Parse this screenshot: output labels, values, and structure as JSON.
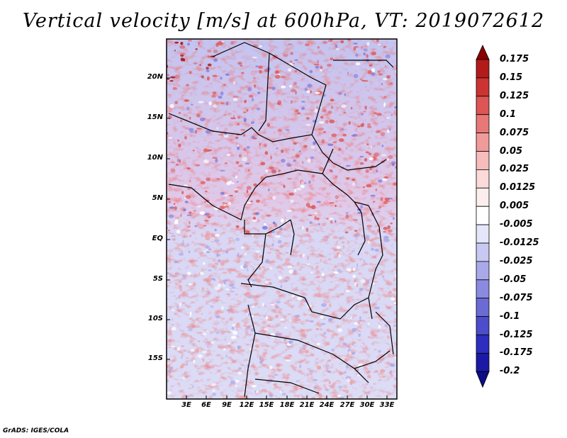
{
  "title": "Vertical velocity [m/s] at 600hPa, VT: 2019072612",
  "map": {
    "variable": "Vertical velocity",
    "units": "m/s",
    "level": "600hPa",
    "valid_time": "2019072612",
    "lat_labels": [
      "20N",
      "15N",
      "10N",
      "5N",
      "EQ",
      "5S",
      "10S",
      "15S"
    ],
    "lon_labels": [
      "3E",
      "6E",
      "9E",
      "12E",
      "15E",
      "18E",
      "21E",
      "24E",
      "27E",
      "30E",
      "33E"
    ]
  },
  "colorbar": {
    "labels": [
      "0.175",
      "0.15",
      "0.125",
      "0.1",
      "0.075",
      "0.05",
      "0.025",
      "0.0125",
      "0.005",
      "-0.005",
      "-0.0125",
      "-0.025",
      "-0.05",
      "-0.075",
      "-0.1",
      "-0.125",
      "-0.175",
      "-0.2"
    ],
    "colors": [
      "#8b0000",
      "#b31b1b",
      "#cc3333",
      "#dd5555",
      "#e87878",
      "#f19a9a",
      "#f7bcbc",
      "#fbdada",
      "#fdeeee",
      "#ffffff",
      "#e6e6fa",
      "#c8c8f2",
      "#a9a9ea",
      "#8a8ae0",
      "#6b6bd6",
      "#4c4ccc",
      "#2d2dbf",
      "#1a1aa6",
      "#0d0d85"
    ]
  },
  "footer": "GrADS: IGES/COLA"
}
